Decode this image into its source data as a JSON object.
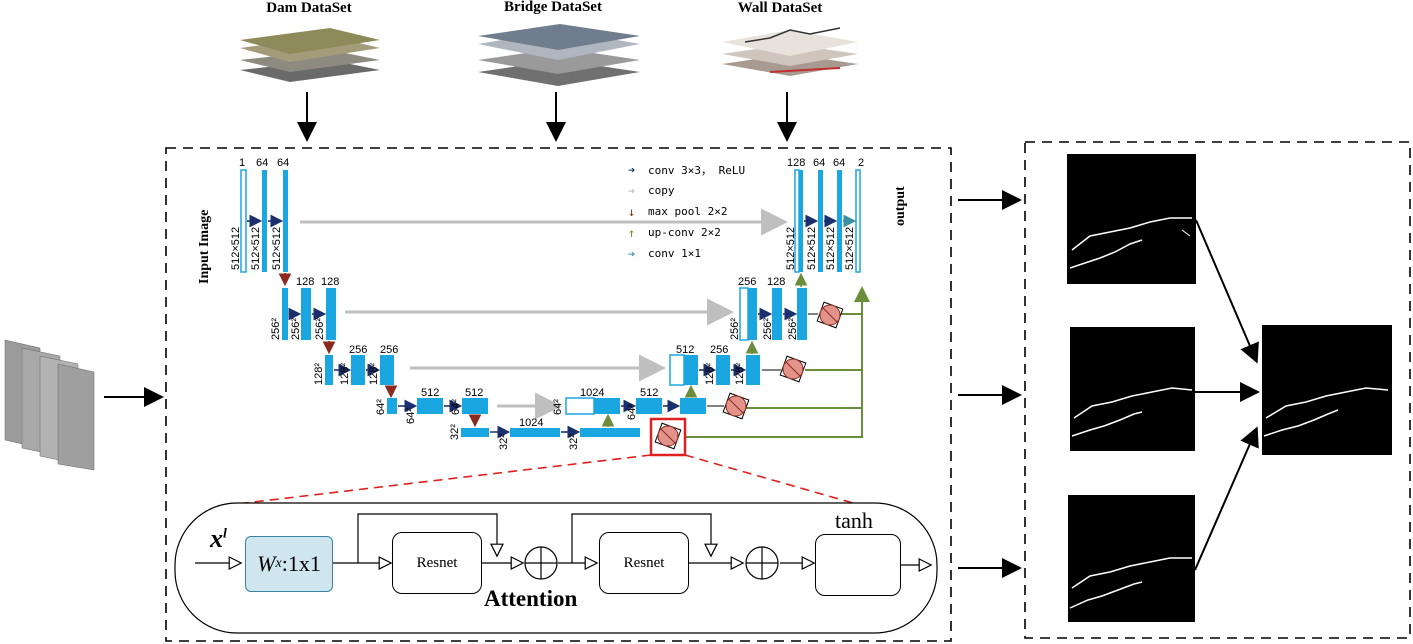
{
  "datasets": {
    "dam": "Dam DataSet",
    "bridge": "Bridge DataSet",
    "wall": "Wall DataSet"
  },
  "unet": {
    "input_label": "Input Image",
    "output_label": "output",
    "legend": [
      {
        "text": "conv 3×3， ReLU",
        "color": "#1b2f6e",
        "icon": "arrow-right-icon"
      },
      {
        "text": "copy",
        "color": "#bfbfbf",
        "icon": "arrow-right-icon"
      },
      {
        "text": "max pool 2×2",
        "color": "#8b2b1f",
        "icon": "arrow-down-icon"
      },
      {
        "text": "up-conv 2×2",
        "color": "#6b8e3a",
        "icon": "arrow-up-icon"
      },
      {
        "text": "conv 1×1",
        "color": "#3a8fa0",
        "icon": "arrow-right-icon"
      }
    ],
    "channels": {
      "enc1": [
        "1",
        "64",
        "64"
      ],
      "enc2": [
        "128",
        "128"
      ],
      "enc3": [
        "256",
        "256"
      ],
      "enc4": [
        "512",
        "512"
      ],
      "bottom": [
        "1024"
      ],
      "dec4": [
        "1024",
        "512"
      ],
      "dec3": [
        "512",
        "256"
      ],
      "dec2": [
        "256",
        "128"
      ],
      "dec1": [
        "128",
        "64",
        "64",
        "2"
      ]
    },
    "sizes": {
      "s512": "512×512",
      "s256": "256²",
      "s128": "128²",
      "s64": "64²",
      "s32": "32²"
    }
  },
  "attention": {
    "input_label": "x",
    "input_sup": "l",
    "wx_label": "W",
    "wx_sub": "x",
    "wx_rest": " :1x1",
    "resnet1": "Resnet",
    "resnet2": "Resnet",
    "tanh": "tanh",
    "title": "Attention"
  },
  "colors": {
    "blue_block": "#1aa6e0",
    "conv_arrow": "#1b2f6e",
    "pool_arrow": "#8b2b1f",
    "up_arrow": "#6b8e3a",
    "copy_arrow": "#bfbfbf",
    "attn_node": "#e4938a",
    "highlight": "#e02020"
  }
}
